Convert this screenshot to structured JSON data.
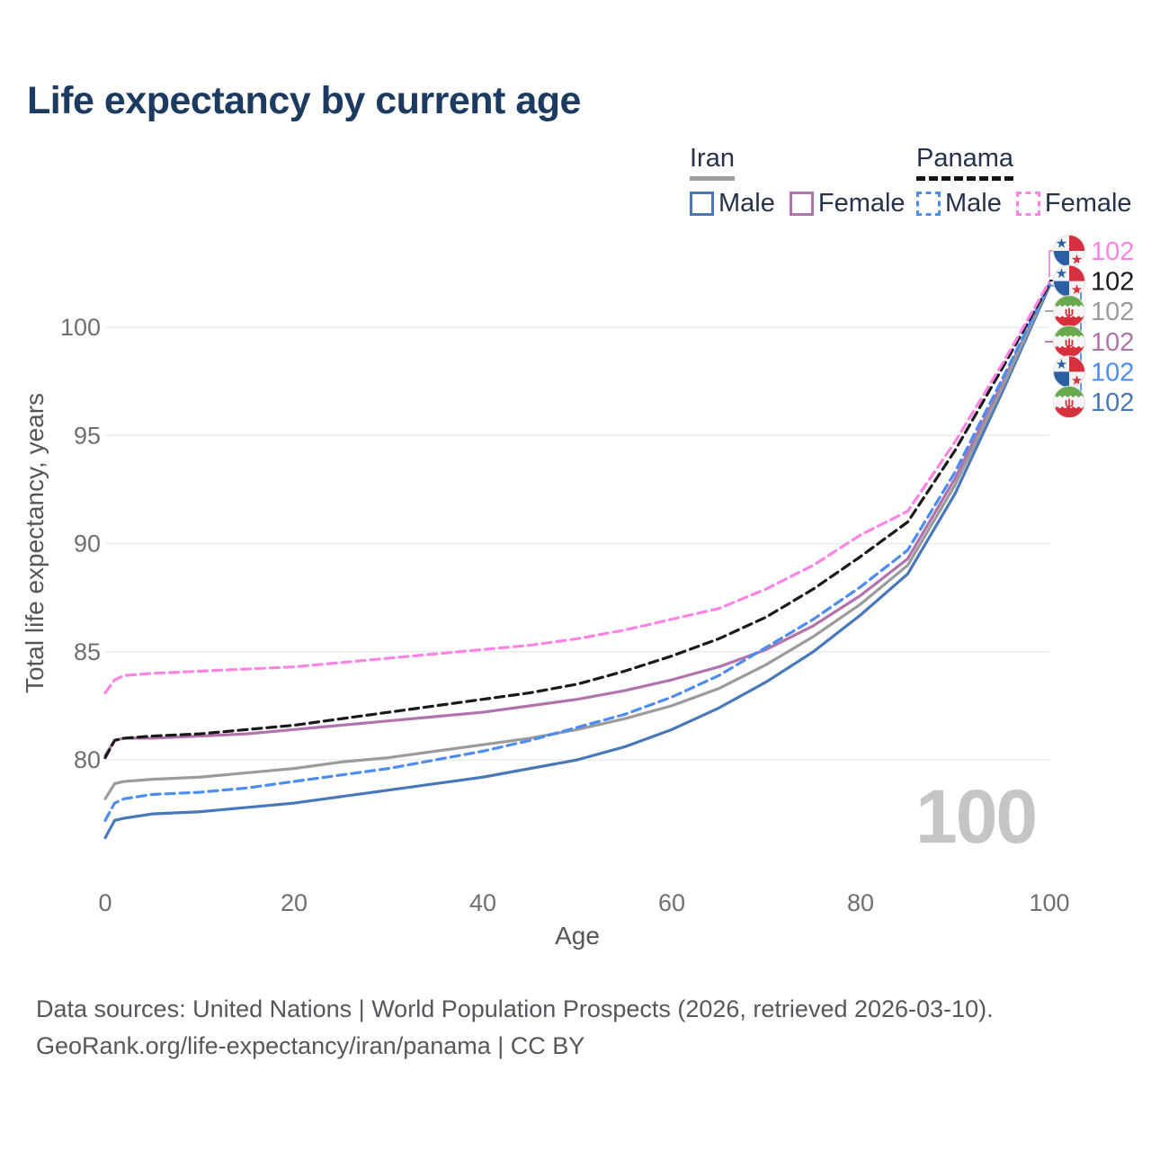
{
  "header": {
    "title": "Life expectancy by current age"
  },
  "legend": {
    "groups": [
      {
        "name": "Iran",
        "line_style": "solid",
        "underline_color": "#9e9e9e",
        "items": [
          {
            "label": "Male",
            "color": "#4878ba",
            "dash": false
          },
          {
            "label": "Female",
            "color": "#b273ac",
            "dash": false
          }
        ]
      },
      {
        "name": "Panama",
        "line_style": "dashed",
        "underline_color": "#141414",
        "items": [
          {
            "label": "Male",
            "color": "#4d8cf0",
            "dash": true
          },
          {
            "label": "Female",
            "color": "#fd84e4",
            "dash": true
          }
        ]
      }
    ]
  },
  "watermark": "100",
  "footer": {
    "line1": "Data sources: United Nations | World Population Prospects (2026, retrieved 2026-03-10).",
    "line2": "GeoRank.org/life-expectancy/iran/panama | CC BY"
  },
  "chart_data": {
    "type": "line",
    "title": "Life expectancy by current age",
    "xlabel": "Age",
    "ylabel": "Total life expectancy, years",
    "xlim": [
      0,
      100
    ],
    "ylim": [
      76,
      103
    ],
    "x_ticks": [
      0,
      20,
      40,
      60,
      80,
      100
    ],
    "y_ticks": [
      80,
      85,
      90,
      95,
      100
    ],
    "grid": "horizontal",
    "legend_position": "top-right",
    "ages": [
      0,
      1,
      2,
      5,
      10,
      15,
      20,
      25,
      30,
      35,
      40,
      45,
      50,
      55,
      60,
      65,
      70,
      75,
      80,
      85,
      90,
      95,
      100
    ],
    "series": [
      {
        "name": "Panama Female",
        "country": "panama",
        "sex": "female",
        "color": "#fd84e4",
        "dash": true,
        "end_label": "102",
        "values": [
          83.1,
          83.7,
          83.9,
          84.0,
          84.1,
          84.2,
          84.3,
          84.5,
          84.7,
          84.9,
          85.1,
          85.3,
          85.6,
          86.0,
          86.5,
          87.0,
          87.9,
          89.0,
          90.4,
          91.5,
          94.7,
          98.3,
          102.1
        ]
      },
      {
        "name": "Panama Both sexes",
        "country": "panama",
        "sex": "both",
        "color": "#1a1a1a",
        "dash": true,
        "end_label": "102",
        "values": [
          80.1,
          80.9,
          81.0,
          81.1,
          81.2,
          81.4,
          81.6,
          81.9,
          82.2,
          82.5,
          82.8,
          83.1,
          83.5,
          84.1,
          84.8,
          85.6,
          86.6,
          87.9,
          89.4,
          91.0,
          94.3,
          98.1,
          102.0
        ]
      },
      {
        "name": "Iran Both sexes",
        "country": "iran",
        "sex": "both",
        "color": "#9b9b9b",
        "dash": false,
        "end_label": "102",
        "values": [
          78.2,
          78.9,
          79.0,
          79.1,
          79.2,
          79.4,
          79.6,
          79.9,
          80.1,
          80.4,
          80.7,
          81.0,
          81.4,
          81.9,
          82.5,
          83.3,
          84.4,
          85.7,
          87.2,
          89.0,
          92.7,
          97.2,
          102.0
        ]
      },
      {
        "name": "Iran Female",
        "country": "iran",
        "sex": "female",
        "color": "#b273ac",
        "dash": false,
        "end_label": "102",
        "values": [
          80.2,
          80.9,
          81.0,
          81.0,
          81.1,
          81.2,
          81.4,
          81.6,
          81.8,
          82.0,
          82.2,
          82.5,
          82.8,
          83.2,
          83.7,
          84.3,
          85.1,
          86.2,
          87.6,
          89.3,
          93.0,
          97.4,
          102.0
        ]
      },
      {
        "name": "Panama Male",
        "country": "panama",
        "sex": "male",
        "color": "#4d8cf0",
        "dash": true,
        "end_label": "102",
        "values": [
          77.2,
          78.0,
          78.2,
          78.4,
          78.5,
          78.7,
          79.0,
          79.3,
          79.6,
          80.0,
          80.4,
          80.9,
          81.5,
          82.1,
          82.9,
          83.9,
          85.2,
          86.5,
          88.0,
          89.7,
          93.3,
          97.6,
          102.0
        ]
      },
      {
        "name": "Iran Male",
        "country": "iran",
        "sex": "male",
        "color": "#4878ba",
        "dash": false,
        "end_label": "102",
        "values": [
          76.4,
          77.2,
          77.3,
          77.5,
          77.6,
          77.8,
          78.0,
          78.3,
          78.6,
          78.9,
          79.2,
          79.6,
          80.0,
          80.6,
          81.4,
          82.4,
          83.6,
          85.0,
          86.7,
          88.6,
          92.3,
          97.0,
          101.9
        ]
      }
    ]
  }
}
